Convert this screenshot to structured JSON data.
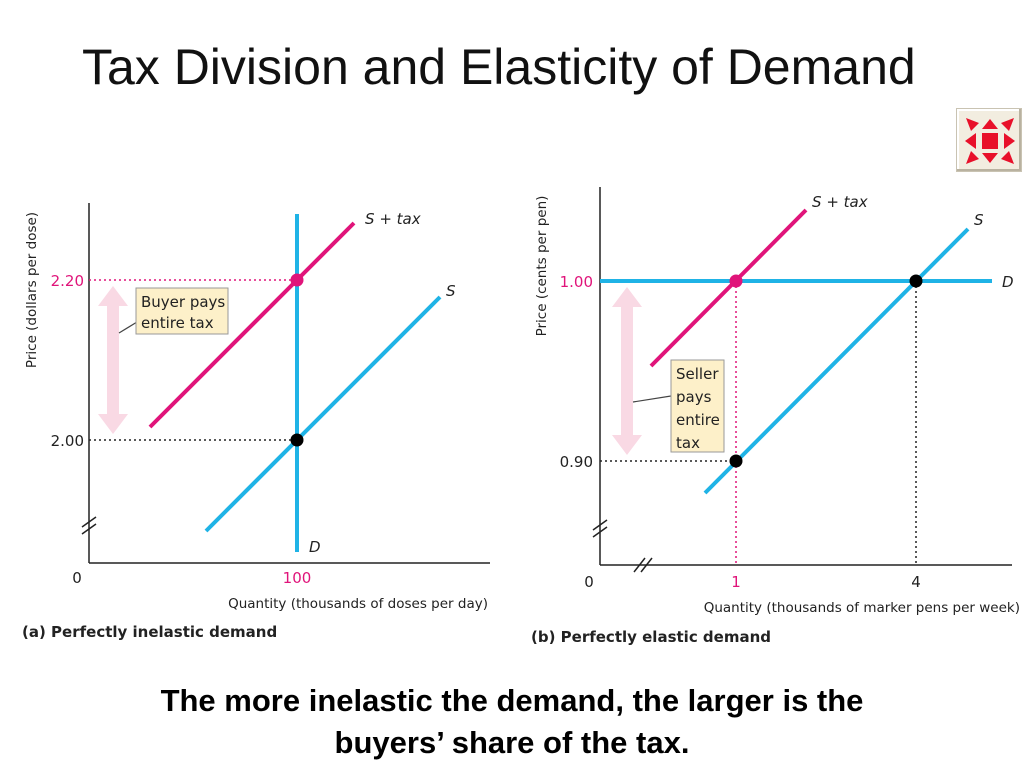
{
  "slide": {
    "title": "Tax Division and Elasticity of Demand",
    "caption_line1": "The more inelastic the demand, the larger is the",
    "caption_line2": "buyers’ share of the tax.",
    "nav_icon": "arrows-inward-icon"
  },
  "colors": {
    "supply": "#1fb3e6",
    "supply_plus_tax": "#e0147a",
    "demand": "#1fb3e6",
    "highlight_text": "#e0147a",
    "arrow_fill": "#f9d9e4",
    "note_bg": "#fdf0c9"
  },
  "panel_a": {
    "subtitle": "(a) Perfectly inelastic demand",
    "y_axis_label": "Price (dollars per dose)",
    "x_axis_label": "Quantity (thousands of doses per day)",
    "x_origin_label": "0",
    "tick_high_price": "2.20",
    "tick_low_price": "2.00",
    "tick_quantity": "100",
    "supply_label": "S",
    "supply_tax_label_s": "S",
    "supply_tax_label_plus": "+",
    "supply_tax_label_tax": "tax",
    "demand_label": "D",
    "note_line1": "Buyer pays",
    "note_line2": "entire tax"
  },
  "panel_b": {
    "subtitle": "(b) Perfectly elastic demand",
    "y_axis_label": "Price (cents per pen)",
    "x_axis_label": "Quantity (thousands of marker pens per week)",
    "x_origin_label": "0",
    "tick_high_price": "1.00",
    "tick_low_price": "0.90",
    "tick_quantity_low": "1",
    "tick_quantity_high": "4",
    "supply_label": "S",
    "supply_tax_label_s": "S",
    "supply_tax_label_plus": "+",
    "supply_tax_label_tax": "tax",
    "demand_label": "D",
    "note_line1": "Seller",
    "note_line2": "pays",
    "note_line3": "entire",
    "note_line4": "tax"
  }
}
